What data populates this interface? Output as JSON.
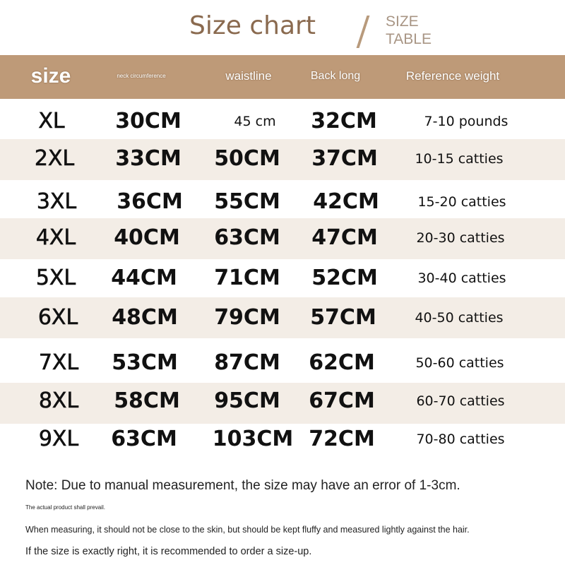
{
  "title": "Size chart",
  "subtitle_lines": [
    "SIZE",
    "TABLE"
  ],
  "header": {
    "size": "size",
    "neck": "neck circumference",
    "waist": "waistline",
    "back": "Back long",
    "weight": "Reference weight"
  },
  "rows": [
    {
      "size": "XL",
      "neck": "30CM",
      "waist": "45 cm",
      "back": "32CM",
      "weight": "7-10 pounds"
    },
    {
      "size": "2XL",
      "neck": "33CM",
      "waist": "50CM",
      "back": "37CM",
      "weight": "10-15 catties"
    },
    {
      "size": "3XL",
      "neck": "36CM",
      "waist": "55CM",
      "back": "42CM",
      "weight": "15-20 catties"
    },
    {
      "size": "4XL",
      "neck": "40CM",
      "waist": "63CM",
      "back": "47CM",
      "weight": "20-30 catties"
    },
    {
      "size": "5XL",
      "neck": "44CM",
      "waist": "71CM",
      "back": "52CM",
      "weight": "30-40 catties"
    },
    {
      "size": "6XL",
      "neck": "48CM",
      "waist": "79CM",
      "back": "57CM",
      "weight": "40-50 catties"
    },
    {
      "size": "7XL",
      "neck": "53CM",
      "waist": "87CM",
      "back": "62CM",
      "weight": "50-60 catties"
    },
    {
      "size": "8XL",
      "neck": "58CM",
      "waist": "95CM",
      "back": "67CM",
      "weight": "60-70 catties"
    },
    {
      "size": "9XL",
      "neck": "63CM",
      "waist": "103CM",
      "back": "72CM",
      "weight": "70-80 catties"
    }
  ],
  "notes": {
    "main": "Note: Due to manual measurement, the size may have an error of 1-3cm.",
    "prevail": "The actual product shall prevail.",
    "measuring": "When measuring, it should not be close to the skin, but should be kept fluffy and measured lightly against the hair.",
    "sizeup": "If the size is exactly right, it is recommended to order a size-up."
  },
  "colors": {
    "header_bg": "#be9a78",
    "title": "#8a6a4f",
    "band": "#f3ede6"
  }
}
